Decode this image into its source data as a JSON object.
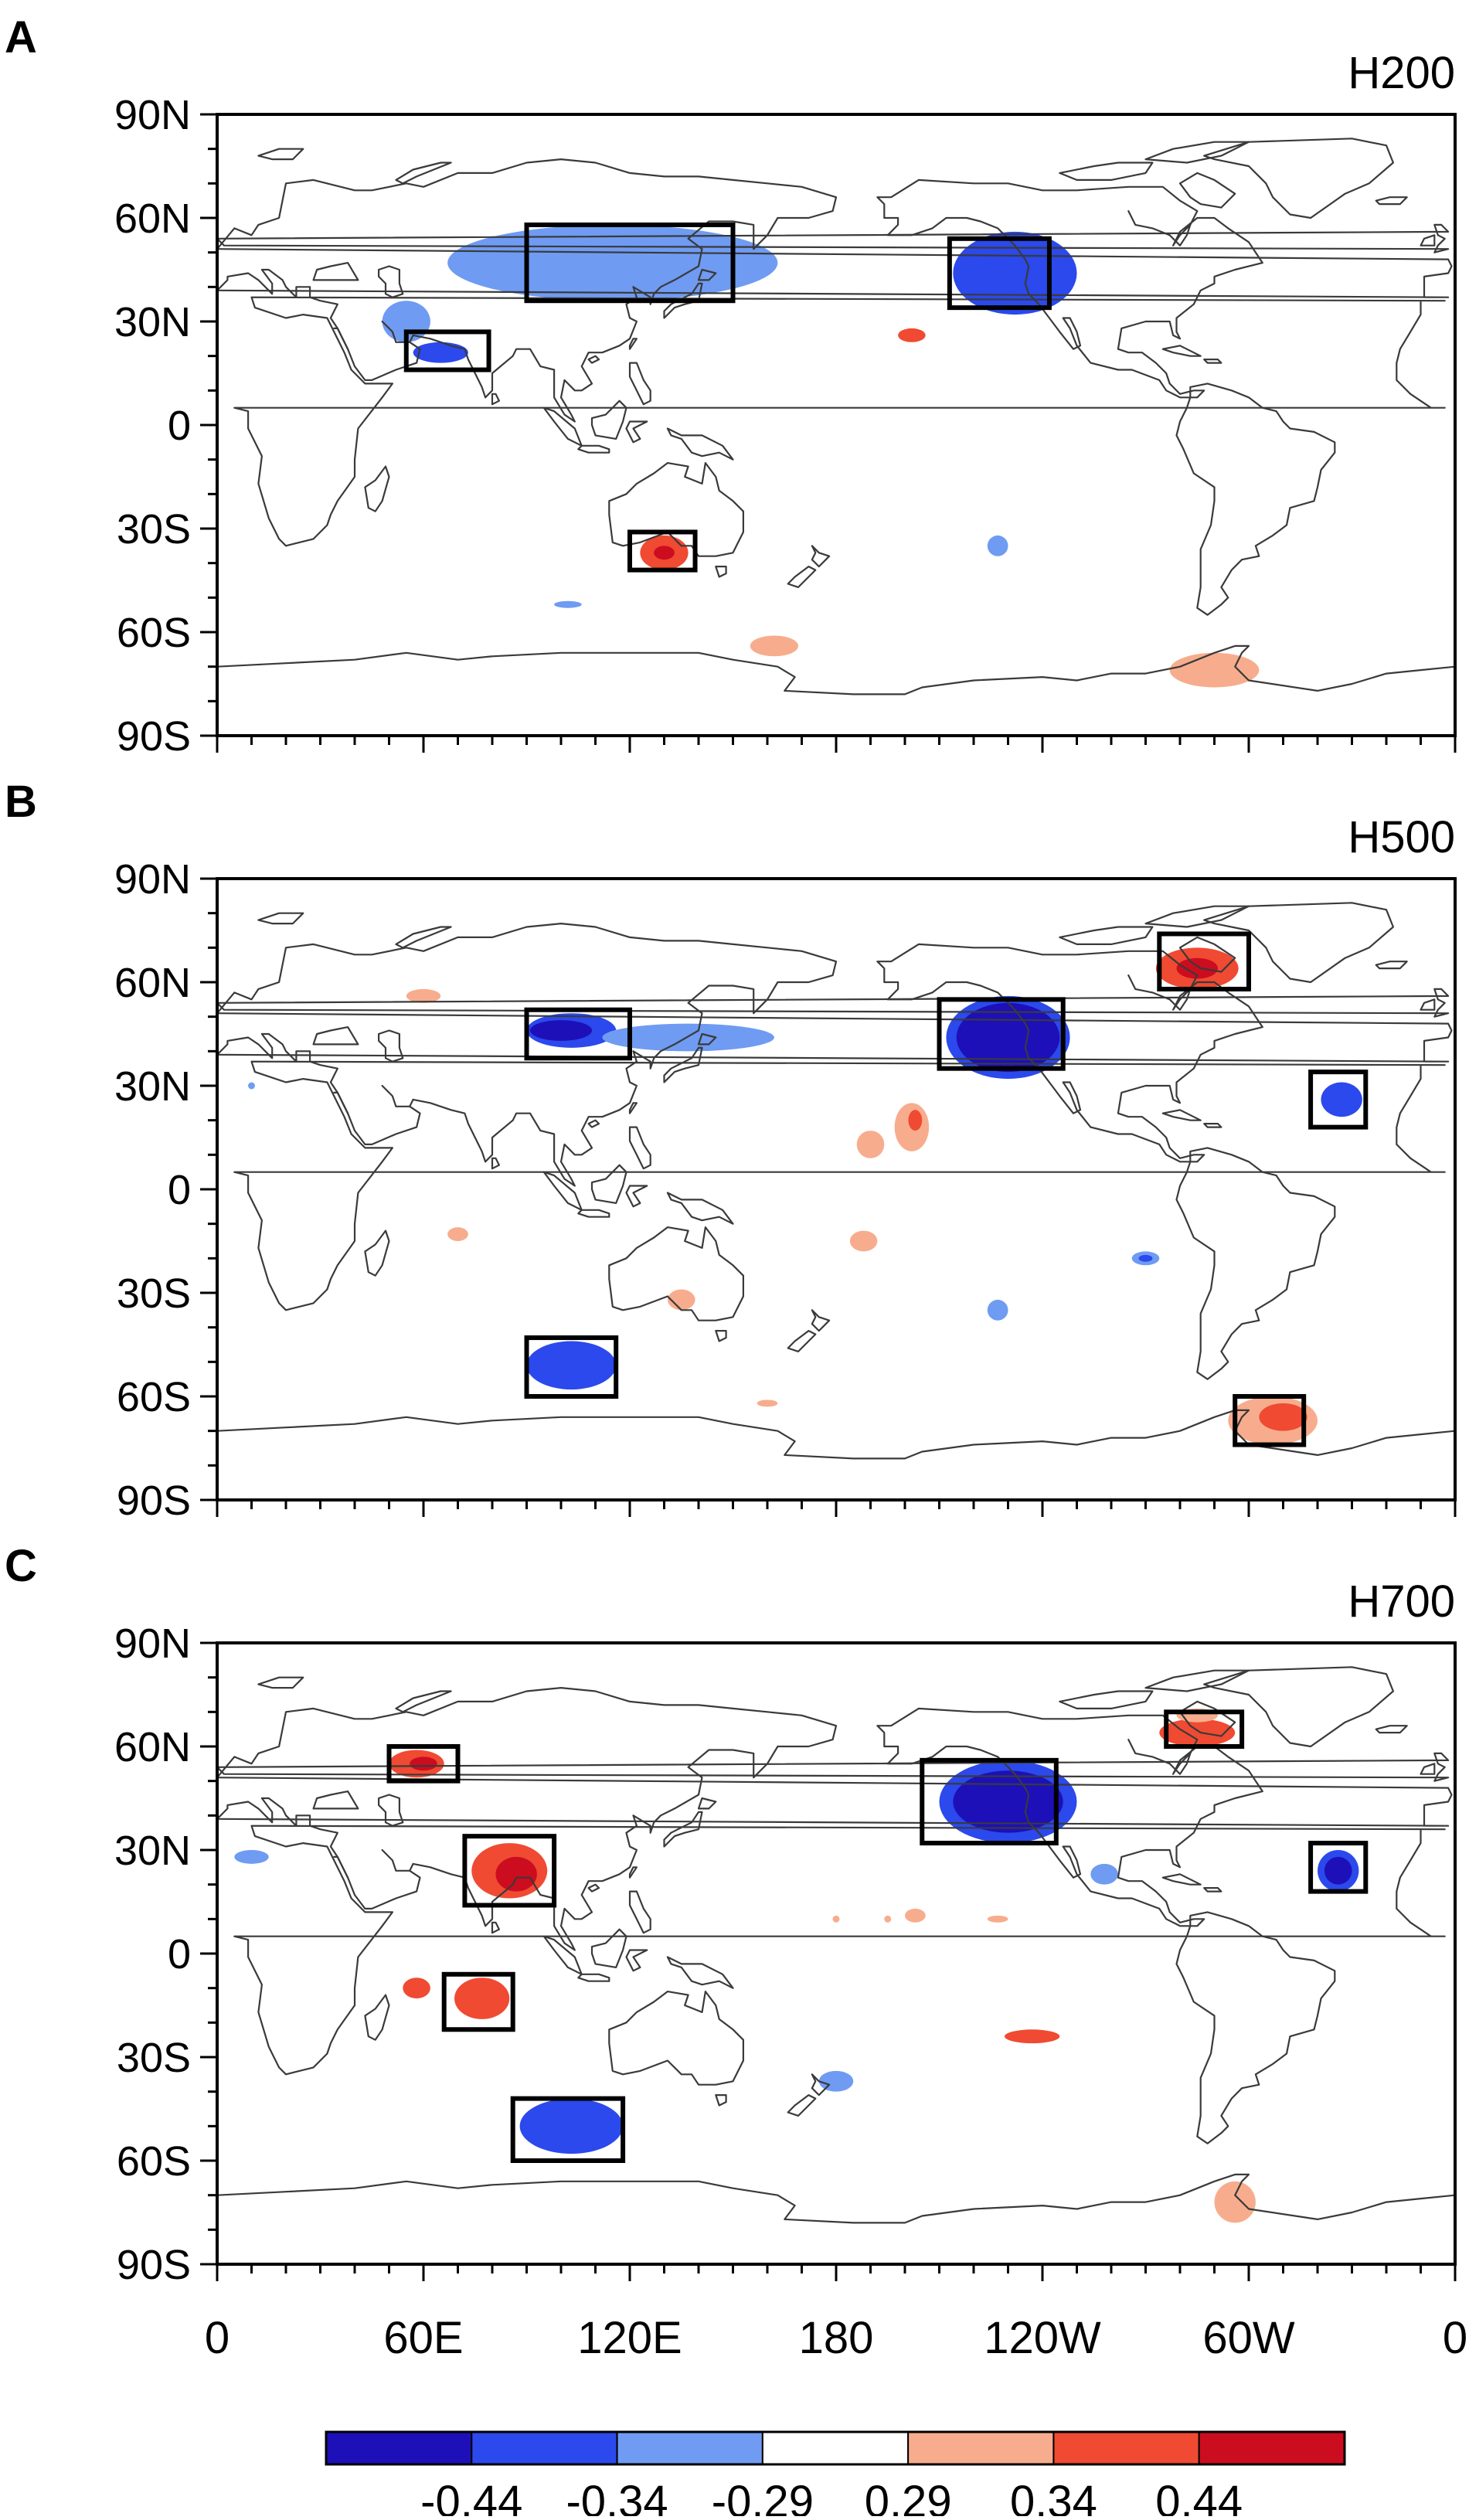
{
  "chart_data": {
    "type": "contour_map",
    "panels": [
      {
        "letter": "A",
        "title": "H200",
        "contours": [
          {
            "lon": 105,
            "lat": 48,
            "rlon": 32,
            "rlat": 9,
            "value": -0.34
          },
          {
            "lon": 96,
            "lat": 49,
            "rlon": 13,
            "rlat": 5,
            "value": -0.44
          },
          {
            "lon": 115,
            "lat": 47,
            "rlon": 48,
            "rlat": 11,
            "value": -0.29
          },
          {
            "lon": 55,
            "lat": 30,
            "rlon": 7,
            "rlat": 6,
            "value": -0.29
          },
          {
            "lon": 65,
            "lat": 21,
            "rlon": 8,
            "rlat": 3,
            "value": -0.34
          },
          {
            "lon": -128,
            "lat": 44,
            "rlon": 16,
            "rlat": 11,
            "value": -0.44
          },
          {
            "lon": -128,
            "lat": 44,
            "rlon": 18,
            "rlat": 12,
            "value": -0.34
          },
          {
            "lon": -158,
            "lat": 26,
            "rlon": 4,
            "rlat": 2,
            "value": 0.34
          },
          {
            "lon": 130,
            "lat": -37,
            "rlon": 7,
            "rlat": 5,
            "value": 0.34
          },
          {
            "lon": 130,
            "lat": -37,
            "rlon": 3,
            "rlat": 2,
            "value": 0.44
          },
          {
            "lon": -133,
            "lat": -35,
            "rlon": 3,
            "rlat": 3,
            "value": -0.29
          },
          {
            "lon": 162,
            "lat": -64,
            "rlon": 7,
            "rlat": 3,
            "value": 0.29
          },
          {
            "lon": -70,
            "lat": -71,
            "rlon": 13,
            "rlat": 5,
            "value": 0.29
          },
          {
            "lon": 102,
            "lat": -52,
            "rlon": 4,
            "rlat": 1,
            "value": -0.29
          }
        ],
        "boxes": [
          {
            "lon1": 90,
            "lon2": 150,
            "lat1": 36,
            "lat2": 58
          },
          {
            "lon1": 55,
            "lon2": 79,
            "lat1": 16,
            "lat2": 27
          },
          {
            "lon1": 120,
            "lon2": 139,
            "lat1": -42,
            "lat2": -31
          },
          {
            "lon1": -147,
            "lon2": -118,
            "lat1": 34,
            "lat2": 54
          }
        ]
      },
      {
        "letter": "B",
        "title": "H500",
        "contours": [
          {
            "lon": 103,
            "lat": 46,
            "rlon": 13,
            "rlat": 5,
            "value": -0.34
          },
          {
            "lon": 100,
            "lat": 46,
            "rlon": 9,
            "rlat": 3,
            "value": -0.44
          },
          {
            "lon": 137,
            "lat": 44,
            "rlon": 25,
            "rlat": 4,
            "value": -0.29
          },
          {
            "lon": -130,
            "lat": 44,
            "rlon": 18,
            "rlat": 12,
            "value": -0.34
          },
          {
            "lon": -130,
            "lat": 44,
            "rlon": 15,
            "rlat": 10,
            "value": -0.44
          },
          {
            "lon": -75,
            "lat": 64,
            "rlon": 12,
            "rlat": 6,
            "value": 0.34
          },
          {
            "lon": -75,
            "lat": 64,
            "rlon": 6,
            "rlat": 3,
            "value": 0.44
          },
          {
            "lon": -33,
            "lat": 26,
            "rlon": 6,
            "rlat": 5,
            "value": -0.34
          },
          {
            "lon": 60,
            "lat": 56,
            "rlon": 5,
            "rlat": 2,
            "value": 0.29
          },
          {
            "lon": 10,
            "lat": 30,
            "rlon": 1,
            "rlat": 1,
            "value": -0.29
          },
          {
            "lon": -158,
            "lat": 18,
            "rlon": 5,
            "rlat": 7,
            "value": 0.29
          },
          {
            "lon": -157,
            "lat": 20,
            "rlon": 2,
            "rlat": 3,
            "value": 0.34
          },
          {
            "lon": -170,
            "lat": 13,
            "rlon": 4,
            "rlat": 4,
            "value": 0.29
          },
          {
            "lon": -172,
            "lat": -15,
            "rlon": 4,
            "rlat": 3,
            "value": 0.29
          },
          {
            "lon": 70,
            "lat": -13,
            "rlon": 3,
            "rlat": 2,
            "value": 0.29
          },
          {
            "lon": 135,
            "lat": -32,
            "rlon": 4,
            "rlat": 3,
            "value": 0.29
          },
          {
            "lon": -133,
            "lat": -35,
            "rlon": 3,
            "rlat": 3,
            "value": -0.29
          },
          {
            "lon": -90,
            "lat": -20,
            "rlon": 4,
            "rlat": 2,
            "value": -0.29
          },
          {
            "lon": -90,
            "lat": -20,
            "rlon": 2,
            "rlat": 1,
            "value": -0.34
          },
          {
            "lon": 103,
            "lat": -51,
            "rlon": 13,
            "rlat": 7,
            "value": -0.34
          },
          {
            "lon": 160,
            "lat": -62,
            "rlon": 3,
            "rlat": 1,
            "value": 0.29
          },
          {
            "lon": -53,
            "lat": -67,
            "rlon": 13,
            "rlat": 7,
            "value": 0.29
          },
          {
            "lon": -50,
            "lat": -66,
            "rlon": 7,
            "rlat": 4,
            "value": 0.34
          }
        ],
        "boxes": [
          {
            "lon1": 90,
            "lon2": 120,
            "lat1": 38,
            "lat2": 52
          },
          {
            "lon1": -150,
            "lon2": -114,
            "lat1": 35,
            "lat2": 55
          },
          {
            "lon1": -86,
            "lon2": -60,
            "lat1": 58,
            "lat2": 74
          },
          {
            "lon1": -42,
            "lon2": -26,
            "lat1": 18,
            "lat2": 34
          },
          {
            "lon1": 90,
            "lon2": 116,
            "lat1": -60,
            "lat2": -43
          },
          {
            "lon1": -64,
            "lon2": -44,
            "lat1": -74,
            "lat2": -60
          }
        ]
      },
      {
        "letter": "C",
        "title": "H700",
        "contours": [
          {
            "lon": -130,
            "lat": 44,
            "rlon": 20,
            "rlat": 12,
            "value": -0.34
          },
          {
            "lon": -130,
            "lat": 44,
            "rlon": 16,
            "rlat": 9,
            "value": -0.44
          },
          {
            "lon": -75,
            "lat": 64,
            "rlon": 11,
            "rlat": 4,
            "value": 0.34
          },
          {
            "lon": -75,
            "lat": 69,
            "rlon": 6,
            "rlat": 2,
            "value": 0.29
          },
          {
            "lon": -34,
            "lat": 24,
            "rlon": 6,
            "rlat": 6,
            "value": -0.34
          },
          {
            "lon": -34,
            "lat": 24,
            "rlon": 4,
            "rlat": 4,
            "value": -0.44
          },
          {
            "lon": -102,
            "lat": 23,
            "rlon": 4,
            "rlat": 3,
            "value": -0.29
          },
          {
            "lon": 58,
            "lat": 55,
            "rlon": 8,
            "rlat": 4,
            "value": 0.34
          },
          {
            "lon": 60,
            "lat": 55,
            "rlon": 4,
            "rlat": 2,
            "value": 0.44
          },
          {
            "lon": 10,
            "lat": 28,
            "rlon": 5,
            "rlat": 2,
            "value": -0.29
          },
          {
            "lon": 85,
            "lat": 24,
            "rlon": 11,
            "rlat": 8,
            "value": 0.34
          },
          {
            "lon": 87,
            "lat": 23,
            "rlon": 6,
            "rlat": 5,
            "value": 0.44
          },
          {
            "lon": 77,
            "lat": -13,
            "rlon": 8,
            "rlat": 6,
            "value": 0.34
          },
          {
            "lon": 58,
            "lat": -10,
            "rlon": 4,
            "rlat": 3,
            "value": 0.34
          },
          {
            "lon": 103,
            "lat": -50,
            "rlon": 15,
            "rlat": 8,
            "value": -0.34
          },
          {
            "lon": 180,
            "lat": -37,
            "rlon": 5,
            "rlat": 3,
            "value": -0.29
          },
          {
            "lon": -123,
            "lat": -24,
            "rlon": 8,
            "rlat": 2,
            "value": 0.34
          },
          {
            "lon": -64,
            "lat": -72,
            "rlon": 6,
            "rlat": 6,
            "value": 0.29
          },
          {
            "lon": -180,
            "lat": 10,
            "rlon": 1,
            "rlat": 1,
            "value": 0.29
          },
          {
            "lon": -165,
            "lat": 10,
            "rlon": 1,
            "rlat": 1,
            "value": 0.29
          },
          {
            "lon": -157,
            "lat": 11,
            "rlon": 3,
            "rlat": 2,
            "value": 0.29
          },
          {
            "lon": -133,
            "lat": 10,
            "rlon": 3,
            "rlat": 1,
            "value": 0.29
          }
        ],
        "boxes": [
          {
            "lon1": 50,
            "lon2": 70,
            "lat1": 50,
            "lat2": 60
          },
          {
            "lon1": 72,
            "lon2": 98,
            "lat1": 14,
            "lat2": 34
          },
          {
            "lon1": 66,
            "lon2": 86,
            "lat1": -22,
            "lat2": -6
          },
          {
            "lon1": 86,
            "lon2": 118,
            "lat1": -60,
            "lat2": -42
          },
          {
            "lon1": -155,
            "lon2": -116,
            "lat1": 32,
            "lat2": 56
          },
          {
            "lon1": -84,
            "lon2": -62,
            "lat1": 60,
            "lat2": 70
          },
          {
            "lon1": -42,
            "lon2": -26,
            "lat1": 18,
            "lat2": 32
          }
        ]
      }
    ],
    "lat_ticks": [
      "90N",
      "60N",
      "30N",
      "0",
      "30S",
      "60S",
      "90S"
    ],
    "lon_ticks": [
      "0",
      "60E",
      "120E",
      "180",
      "120W",
      "60W",
      "0"
    ],
    "lat_range": [
      -90,
      90
    ],
    "lon_range": [
      0,
      360
    ],
    "colorbar": {
      "levels": [
        "-0.44",
        "-0.34",
        "-0.29",
        "0.29",
        "0.34",
        "0.44"
      ],
      "colors": [
        "#1d10b8",
        "#2b49ec",
        "#6f9bf2",
        "#ffffff",
        "#f7ad8d",
        "#f04a32",
        "#cc0c1f"
      ]
    },
    "coastline_color": "#3a3a3a"
  }
}
